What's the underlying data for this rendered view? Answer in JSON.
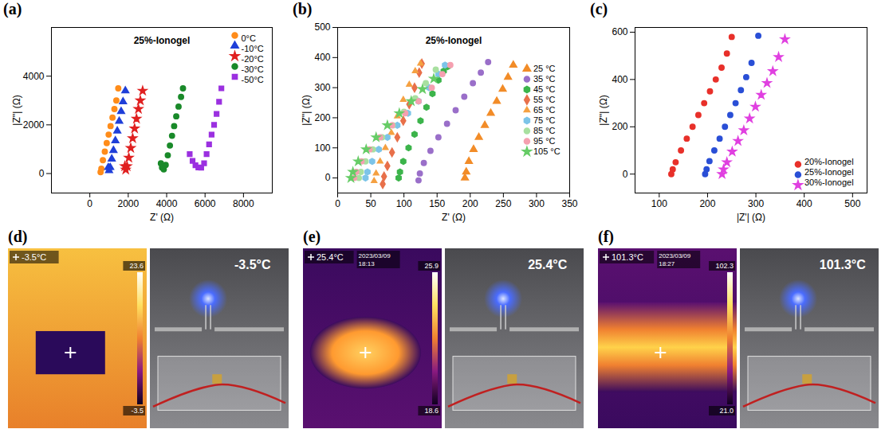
{
  "chart_data": [
    {
      "type": "scatter",
      "panel_label": "(a)",
      "title": "25%-Ionogel",
      "x_label": "Z' (Ω)",
      "y_label": "|Z''| (Ω)",
      "xlim": [
        -2000,
        9500
      ],
      "ylim": [
        -800,
        6000
      ],
      "xticks": [
        0,
        2000,
        4000,
        6000,
        8000
      ],
      "yticks": [
        0,
        2000,
        4000
      ],
      "legend": "top-right",
      "series": [
        {
          "name": "0°C",
          "color": "#ff8c1a",
          "marker": "circle",
          "x": [
            560,
            600,
            680,
            780,
            880,
            980,
            1080,
            1180,
            1280,
            1380,
            1480
          ],
          "values": [
            60,
            200,
            550,
            900,
            1250,
            1600,
            1950,
            2300,
            2650,
            3000,
            3500
          ]
        },
        {
          "name": "-10°C",
          "color": "#1f3fd9",
          "marker": "triangle",
          "x": [
            960,
            1000,
            1060,
            1140,
            1230,
            1330,
            1430,
            1530,
            1630,
            1730,
            1850
          ],
          "values": [
            250,
            120,
            250,
            600,
            950,
            1350,
            1750,
            2150,
            2550,
            2950,
            3400
          ]
        },
        {
          "name": "-20°C",
          "color": "#e02020",
          "marker": "star",
          "x": [
            1820,
            1870,
            1940,
            2030,
            2130,
            2230,
            2330,
            2430,
            2530,
            2630,
            2750
          ],
          "values": [
            300,
            160,
            300,
            650,
            1050,
            1450,
            1850,
            2250,
            2650,
            3000,
            3400
          ]
        },
        {
          "name": "-30°C",
          "color": "#1a8a2a",
          "marker": "circle",
          "x": [
            3700,
            3760,
            3850,
            3950,
            4060,
            4170,
            4280,
            4390,
            4500,
            4620,
            4750,
            4850
          ],
          "values": [
            420,
            250,
            170,
            350,
            750,
            1150,
            1550,
            1950,
            2350,
            2750,
            3150,
            3500
          ]
        },
        {
          "name": "-50°C",
          "color": "#9b30e0",
          "marker": "square",
          "x": [
            5200,
            5350,
            5500,
            5650,
            5800,
            5950,
            6080,
            6210,
            6340,
            6470,
            6600,
            6730,
            6850
          ],
          "values": [
            800,
            520,
            340,
            250,
            240,
            420,
            800,
            1200,
            1600,
            2000,
            2450,
            2950,
            3500
          ]
        }
      ]
    },
    {
      "type": "scatter",
      "panel_label": "(b)",
      "title": "25%-Ionogel",
      "x_label": "Z' (Ω)",
      "y_label": "|Z''| (Ω)",
      "xlim": [
        0,
        350
      ],
      "ylim": [
        -50,
        500
      ],
      "xticks": [
        0,
        50,
        100,
        150,
        200,
        250,
        300,
        350
      ],
      "yticks": [
        0,
        100,
        200,
        300,
        400,
        500
      ],
      "legend": "right",
      "series": [
        {
          "name": "25 °C",
          "color": "#f28c28",
          "marker": "triangle",
          "x": [
            192,
            194,
            198,
            205,
            213,
            222,
            231,
            240,
            249,
            257,
            265
          ],
          "values": [
            0,
            20,
            55,
            95,
            135,
            175,
            215,
            255,
            295,
            335,
            375
          ]
        },
        {
          "name": "35 °C",
          "color": "#9a6fc9",
          "marker": "circle",
          "x": [
            122,
            124,
            130,
            140,
            152,
            165,
            178,
            191,
            204,
            216,
            227
          ],
          "values": [
            -8,
            15,
            50,
            90,
            135,
            180,
            225,
            270,
            315,
            350,
            385
          ]
        },
        {
          "name": "45 °C",
          "color": "#3cb44b",
          "marker": "hexagon",
          "x": [
            92,
            94,
            99,
            107,
            116,
            125,
            134,
            143,
            152,
            160,
            166
          ],
          "values": [
            0,
            20,
            55,
            100,
            145,
            190,
            235,
            280,
            325,
            355,
            370
          ]
        },
        {
          "name": "55 °C",
          "color": "#e8704a",
          "marker": "diamond",
          "x": [
            68,
            70,
            75,
            82,
            90,
            99,
            108,
            116,
            123,
            127
          ],
          "values": [
            -20,
            5,
            40,
            85,
            135,
            190,
            245,
            300,
            350,
            380
          ]
        },
        {
          "name": "65 °C",
          "color": "#f5a142",
          "marker": "triangle2",
          "x": [
            55,
            58,
            64,
            72,
            81,
            90,
            99,
            108,
            117,
            125
          ],
          "values": [
            -10,
            15,
            55,
            100,
            150,
            205,
            260,
            310,
            355,
            380
          ]
        },
        {
          "name": "75 °C",
          "color": "#7cc4e8",
          "marker": "hexagon",
          "x": [
            42,
            45,
            52,
            62,
            75,
            90,
            106,
            122,
            138,
            152,
            162
          ],
          "values": [
            0,
            20,
            55,
            95,
            135,
            175,
            215,
            255,
            300,
            345,
            375
          ]
        },
        {
          "name": "85 °C",
          "color": "#a8e0a0",
          "marker": "circle",
          "x": [
            32,
            35,
            42,
            53,
            67,
            83,
            100,
            117,
            133,
            148
          ],
          "values": [
            0,
            20,
            55,
            95,
            135,
            175,
            220,
            265,
            315,
            360
          ]
        },
        {
          "name": "95 °C",
          "color": "#f5a0b0",
          "marker": "circle",
          "x": [
            25,
            28,
            36,
            48,
            64,
            82,
            102,
            122,
            142,
            158,
            170
          ],
          "values": [
            0,
            20,
            55,
            95,
            135,
            175,
            215,
            255,
            300,
            345,
            375
          ]
        },
        {
          "name": "105 °C",
          "color": "#66cc66",
          "marker": "star",
          "x": [
            20,
            23,
            31,
            43,
            58,
            75,
            93,
            111,
            128,
            145
          ],
          "values": [
            0,
            20,
            55,
            95,
            135,
            175,
            215,
            255,
            295,
            330
          ]
        }
      ]
    },
    {
      "type": "scatter",
      "panel_label": "(c)",
      "x_label": "|Z'| (Ω)",
      "y_label": "|Z''| (Ω)",
      "xlim": [
        50,
        530
      ],
      "ylim": [
        -80,
        620
      ],
      "xticks": [
        100,
        200,
        300,
        400,
        500
      ],
      "yticks": [
        0,
        200,
        400,
        600
      ],
      "legend": "bottom-right",
      "series": [
        {
          "name": "20%-Ionogel",
          "color": "#e8302a",
          "marker": "circle",
          "x": [
            125,
            128,
            134,
            145,
            157,
            169,
            181,
            193,
            205,
            217,
            229,
            240,
            250
          ],
          "values": [
            0,
            20,
            50,
            100,
            150,
            200,
            250,
            300,
            350,
            400,
            450,
            510,
            580
          ]
        },
        {
          "name": "25%-Ionogel",
          "color": "#2a4fd6",
          "marker": "circle",
          "x": [
            195,
            198,
            204,
            214,
            225,
            236,
            247,
            258,
            269,
            280,
            291,
            305
          ],
          "values": [
            0,
            20,
            55,
            100,
            150,
            200,
            250,
            300,
            355,
            410,
            470,
            585
          ]
        },
        {
          "name": "30%-Ionogel",
          "color": "#e040e0",
          "marker": "star",
          "x": [
            230,
            233,
            240,
            251,
            263,
            275,
            287,
            299,
            311,
            323,
            335,
            347,
            360
          ],
          "values": [
            0,
            20,
            50,
            95,
            140,
            185,
            235,
            285,
            335,
            385,
            435,
            495,
            570
          ]
        }
      ]
    }
  ],
  "images": [
    {
      "panel_label": "(d)",
      "readout": "-3.5°C",
      "scale_max": "23.6",
      "scale_min": "-3.5",
      "photo_text": "-3.5°C"
    },
    {
      "panel_label": "(e)",
      "readout": "25.4°C",
      "date": "2023/03/09",
      "time": "18:13",
      "scale_max": "25.9",
      "scale_min": "18.6",
      "photo_text": "25.4°C"
    },
    {
      "panel_label": "(f)",
      "readout": "101.3°C",
      "date": "2023/03/09",
      "time": "18:27",
      "scale_max": "102.3",
      "scale_min": "21.0",
      "photo_text": "101.3°C"
    }
  ]
}
